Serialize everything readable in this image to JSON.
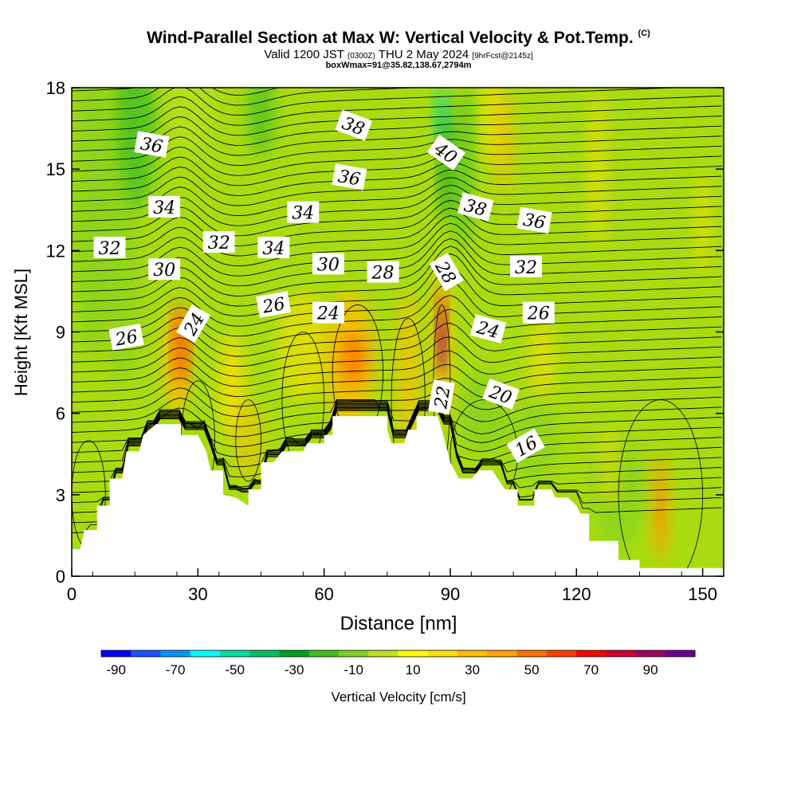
{
  "chart_data": {
    "type": "heatmap",
    "title": "Wind-Parallel Section at Max W: Vertical Velocity & Pot.Temp.",
    "title_mark": "(C)",
    "subtitle": {
      "valid": "Valid 1200 JST",
      "utc": "(0300Z)",
      "date": "THU 2 May 2024",
      "fcst": "[9hrFcst@2145z]"
    },
    "annotation": "boxWmax=91@35.82,138.67,2794m",
    "xlabel": "Distance [nm]",
    "ylabel": "Height [Kft MSL]",
    "xlim": [
      0,
      155
    ],
    "ylim": [
      0,
      18
    ],
    "xticks": [
      "0",
      "30",
      "60",
      "90",
      "120",
      "150"
    ],
    "yticks": [
      "0",
      "3",
      "6",
      "9",
      "12",
      "15",
      "18"
    ],
    "colorbar": {
      "label": "Vertical Velocity [cm/s]",
      "tick_labels": [
        "-90",
        "-70",
        "-50",
        "-30",
        "-10",
        "10",
        "30",
        "50",
        "70",
        "90"
      ],
      "colors": [
        "#0000ff",
        "#1a56ff",
        "#0096ff",
        "#00ffff",
        "#00e0a0",
        "#00c060",
        "#00a020",
        "#40c020",
        "#80d020",
        "#c0e020",
        "#ffff00",
        "#ffe000",
        "#ffc000",
        "#ffa000",
        "#ff7000",
        "#ff4000",
        "#ff0000",
        "#d00030",
        "#a00060",
        "#6a0090"
      ]
    },
    "theta_contour_labels": [
      "16",
      "20",
      "22",
      "24",
      "24",
      "24",
      "26",
      "26",
      "26",
      "28",
      "28",
      "30",
      "30",
      "32",
      "32",
      "32",
      "34",
      "34",
      "34",
      "36",
      "36",
      "36",
      "38",
      "38",
      "40"
    ],
    "terrain_kft": [
      [
        0,
        1.0
      ],
      [
        2,
        1.0
      ],
      [
        3,
        1.7
      ],
      [
        6,
        1.7
      ],
      [
        6,
        2.6
      ],
      [
        9,
        2.6
      ],
      [
        9,
        3.6
      ],
      [
        12,
        3.6
      ],
      [
        13,
        4.6
      ],
      [
        16,
        4.6
      ],
      [
        17,
        5.2
      ],
      [
        20,
        5.6
      ],
      [
        26,
        5.6
      ],
      [
        26,
        5.2
      ],
      [
        30,
        5.2
      ],
      [
        32,
        4.6
      ],
      [
        33,
        3.9
      ],
      [
        36,
        3.9
      ],
      [
        36,
        3.0
      ],
      [
        39,
        2.9
      ],
      [
        42,
        2.6
      ],
      [
        42,
        3.2
      ],
      [
        45,
        3.2
      ],
      [
        45,
        4.2
      ],
      [
        48,
        4.2
      ],
      [
        50,
        4.6
      ],
      [
        55,
        4.6
      ],
      [
        56,
        4.9
      ],
      [
        60,
        4.9
      ],
      [
        60,
        5.2
      ],
      [
        62,
        5.2
      ],
      [
        62,
        5.9
      ],
      [
        75,
        5.9
      ],
      [
        75,
        5.4
      ],
      [
        76,
        4.9
      ],
      [
        79,
        4.9
      ],
      [
        80,
        5.4
      ],
      [
        82,
        5.4
      ],
      [
        82,
        5.9
      ],
      [
        87,
        5.9
      ],
      [
        88,
        5.4
      ],
      [
        90,
        4.2
      ],
      [
        92,
        3.6
      ],
      [
        95,
        3.6
      ],
      [
        97,
        3.9
      ],
      [
        100,
        3.9
      ],
      [
        103,
        3.2
      ],
      [
        106,
        3.2
      ],
      [
        106,
        2.6
      ],
      [
        110,
        2.6
      ],
      [
        110,
        3.2
      ],
      [
        114,
        3.2
      ],
      [
        115,
        2.9
      ],
      [
        118,
        2.9
      ],
      [
        120,
        2.6
      ],
      [
        121,
        2.3
      ],
      [
        123,
        2.3
      ],
      [
        123,
        1.3
      ],
      [
        130,
        1.3
      ],
      [
        130,
        0.6
      ],
      [
        135,
        0.6
      ],
      [
        135,
        0.3
      ],
      [
        155,
        0.3
      ]
    ]
  }
}
